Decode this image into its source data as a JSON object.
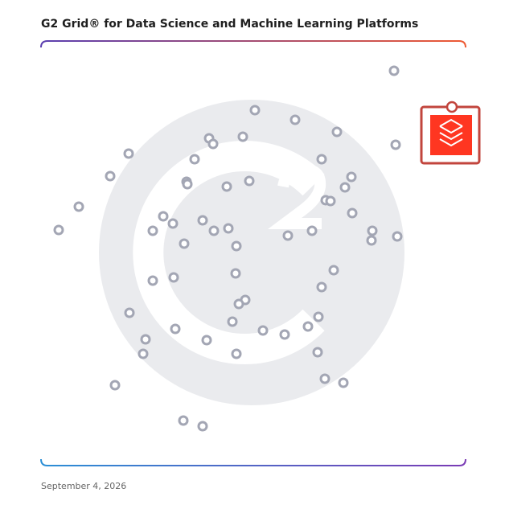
{
  "chart_data": {
    "type": "scatter",
    "title": "G2 Grid® for Data Science and Machine Learning Platforms",
    "date": "September 4, 2026",
    "xlim": [
      0,
      528
    ],
    "ylim": [
      0,
      528
    ],
    "series": [
      {
        "color": "#a3a6b4",
        "marker": "ring",
        "x": [
          439,
          266,
          316,
          368,
          209,
          214,
          251,
          441,
          109,
          191,
          349,
          86,
          181,
          182,
          259,
          231,
          386,
          378,
          354,
          360,
          47,
          387,
          152,
          164,
          201,
          215,
          233,
          139,
          22,
          307,
          337,
          412,
          411,
          443,
          178,
          243,
          364,
          139,
          165,
          242,
          349,
          254,
          246,
          110,
          345,
          238,
          332,
          167,
          276,
          303,
          130,
          206,
          127,
          243,
          344,
          92,
          353,
          376,
          177,
          201
        ],
        "values": [
          491,
          442,
          430,
          415,
          407,
          400,
          409,
          399,
          388,
          381,
          381,
          360,
          353,
          350,
          354,
          347,
          359,
          346,
          330,
          329,
          322,
          314,
          310,
          301,
          305,
          292,
          295,
          292,
          293,
          286,
          292,
          292,
          280,
          285,
          276,
          273,
          243,
          230,
          234,
          239,
          222,
          206,
          201,
          190,
          185,
          179,
          173,
          170,
          168,
          163,
          157,
          156,
          139,
          139,
          141,
          100,
          108,
          103,
          56,
          49
        ]
      },
      {
        "color": "#c2453d",
        "marker": "logo",
        "x": [
          509
        ],
        "values": [
          412
        ]
      }
    ]
  }
}
